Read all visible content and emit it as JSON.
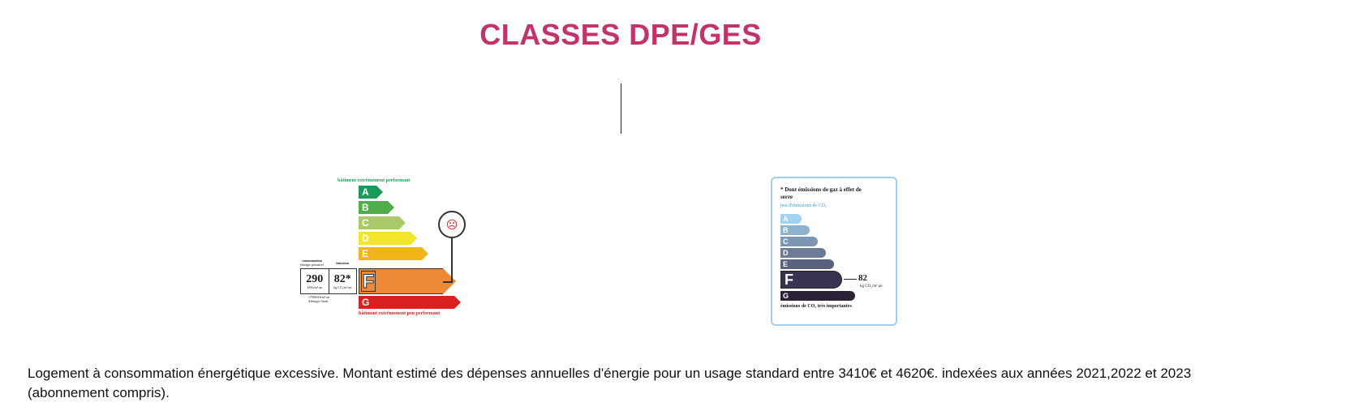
{
  "header": {
    "title": "CLASSES DPE/GES"
  },
  "dpe": {
    "top_caption": "bâtiment extrêmement performant",
    "bottom_caption": "bâtiment extrêmement peu performant",
    "left_caption_top": "consommation",
    "left_caption_sub": "(énergie primaire)",
    "right_caption_top": "émissions",
    "classes": [
      "A",
      "B",
      "C",
      "D",
      "E",
      "F",
      "G"
    ],
    "colors": [
      "#1a9a5a",
      "#4fae4a",
      "#a9c96a",
      "#f2e52a",
      "#f0b51b",
      "#ee8a37",
      "#d7211f"
    ],
    "selected_class": "F",
    "consumption_value": "290",
    "consumption_unit": "kWh/m².an",
    "emissions_value": "82",
    "emissions_marker": "*",
    "emissions_unit": "kg CO₂/m².an",
    "note_line1": "1799kWh/m².an",
    "note_line2": "d'énergie finale"
  },
  "ges": {
    "header": "* Dont émissions de gaz à effet de serre",
    "sub": "peu d'émissions de CO₂",
    "classes": [
      "A",
      "B",
      "C",
      "D",
      "E",
      "F",
      "G"
    ],
    "colors": [
      "#9fd3ef",
      "#8db3cf",
      "#7d96b3",
      "#6c7b98",
      "#5b627e",
      "#3a3350",
      "#2b2238"
    ],
    "selected_class": "F",
    "value": "82",
    "unit": "kg CO₂/m².an",
    "footer": "émissions de CO₂ très importantes"
  },
  "description": "Logement à consommation énergétique excessive. Montant estimé des dépenses annuelles d'énergie pour un usage standard entre 3410€ et 4620€. indexées aux années 2021,2022 et 2023 (abonnement compris)."
}
